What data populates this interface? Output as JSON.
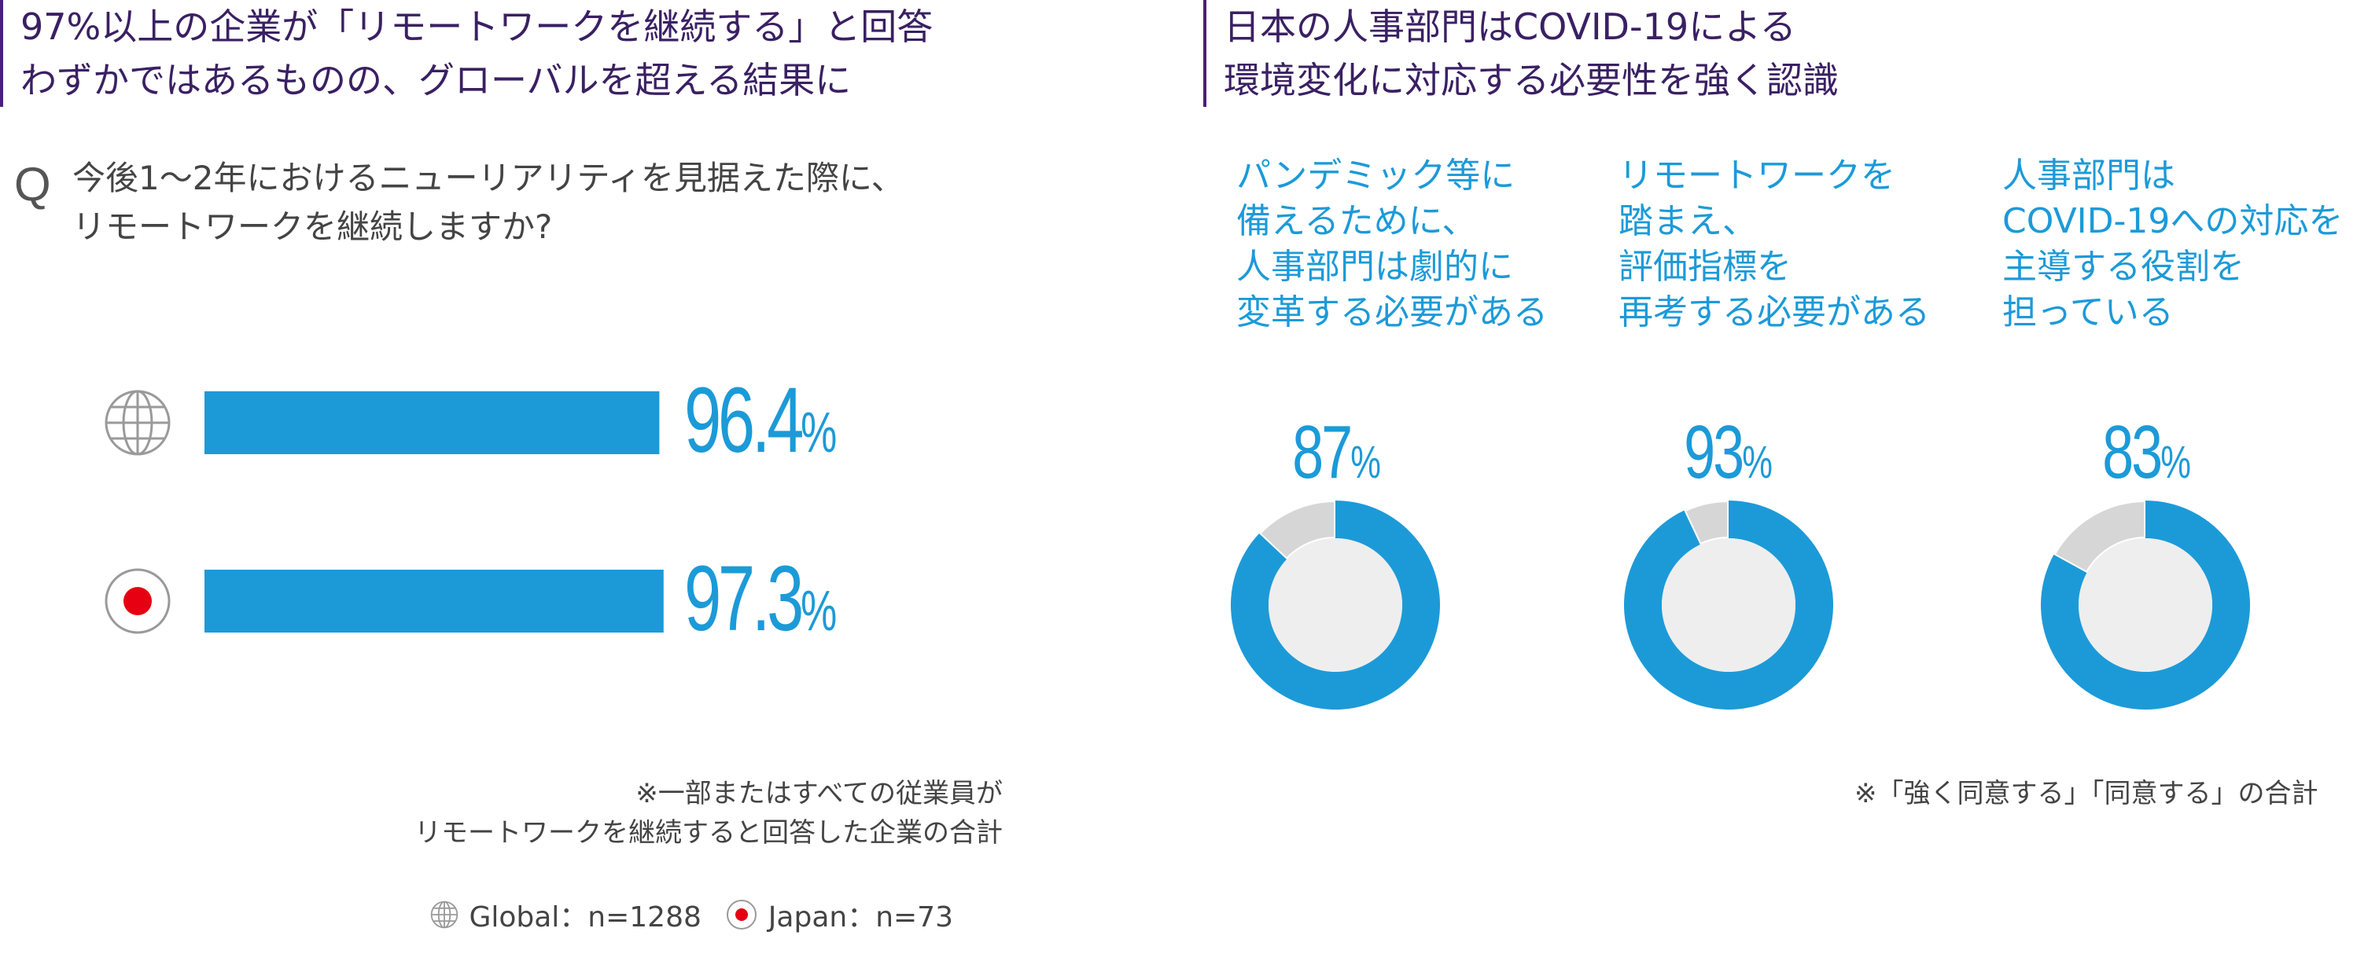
{
  "left": {
    "headline": [
      "97%以上の企業が「リモートワークを継続する」と回答",
      "わずかではあるものの、グローバルを超える結果に"
    ],
    "question_mark": "Q",
    "question": [
      "今後1〜2年におけるニューリアリティを見据えた際に、",
      "リモートワークを継続しますか?"
    ],
    "note": [
      "※一部またはすべての従業員が",
      "リモートワークを継続すると回答した企業の合計"
    ],
    "legend": {
      "global_label": "Global：n=1288",
      "japan_label": "Japan：n=73"
    }
  },
  "right": {
    "headline": [
      "日本の人事部門はCOVID-19による",
      "環境変化に対応する必要性を強く認識"
    ],
    "statements": [
      [
        "パンデミック等に",
        "備えるために、",
        "人事部門は劇的に",
        "変革する必要がある"
      ],
      [
        "リモートワークを",
        "踏まえ、",
        "評価指標を",
        "再考する必要がある"
      ],
      [
        "人事部門は",
        "COVID-19への対応を",
        "主導する役割を",
        "担っている"
      ]
    ],
    "note": "※「強く同意する」「同意する」の合計"
  },
  "colors": {
    "accent": "#1c9ad8",
    "donut_rest": "#d6d6d6",
    "donut_center": "#eeeeee",
    "headline": "#3a2063",
    "rule": "#4b1f7a",
    "japan_dot": "#e60012"
  },
  "icons": {
    "global": "globe-icon",
    "japan": "japan-flag-icon"
  },
  "chart_data": [
    {
      "type": "bar",
      "orientation": "horizontal",
      "categories": [
        "Global",
        "Japan"
      ],
      "values": [
        96.4,
        97.3
      ],
      "labels": [
        "96.4",
        "97.3"
      ],
      "unit": "%",
      "xlim": [
        0,
        100
      ]
    },
    {
      "type": "pie",
      "variant": "donut",
      "charts": [
        {
          "value": 87,
          "label": "87",
          "unit": "%"
        },
        {
          "value": 93,
          "label": "93",
          "unit": "%"
        },
        {
          "value": 83,
          "label": "83",
          "unit": "%"
        }
      ]
    }
  ]
}
